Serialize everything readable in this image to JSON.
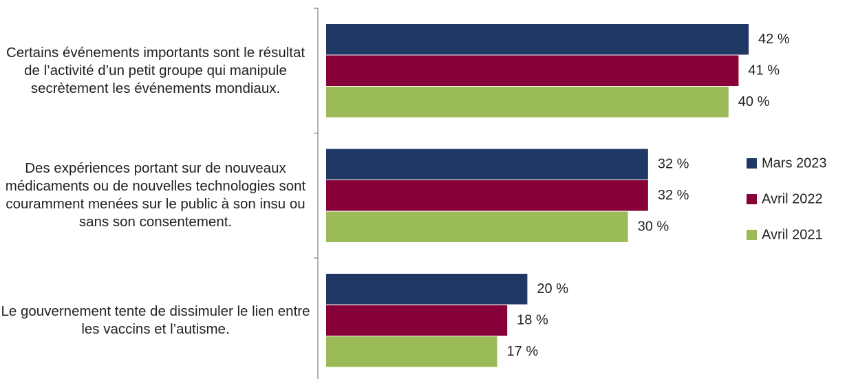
{
  "chart_data": {
    "type": "bar",
    "orientation": "horizontal",
    "categories": [
      "Certains événements importants sont le résultat de l’activité d’un petit groupe qui manipule secrètement les événements mondiaux.",
      "Des expériences portant sur de nouveaux médicaments ou de nouvelles technologies sont couramment menées sur le public à son insu ou sans son consentement.",
      "Le gouvernement tente de dissimuler le lien entre les vaccins et l’autisme."
    ],
    "series": [
      {
        "name": "Mars 2023",
        "color": "#203864",
        "values": [
          42,
          32,
          20
        ],
        "value_labels": [
          "42 %",
          "32 %",
          "20 %"
        ]
      },
      {
        "name": "Avril 2022",
        "color": "#870037",
        "values": [
          41,
          32,
          18
        ],
        "value_labels": [
          "41 %",
          "32 %",
          "18 %"
        ]
      },
      {
        "name": "Avril 2021",
        "color": "#9bbb59",
        "values": [
          40,
          30,
          17
        ],
        "value_labels": [
          "40 %",
          "30 %",
          "17 %"
        ]
      }
    ],
    "legend": "right"
  }
}
